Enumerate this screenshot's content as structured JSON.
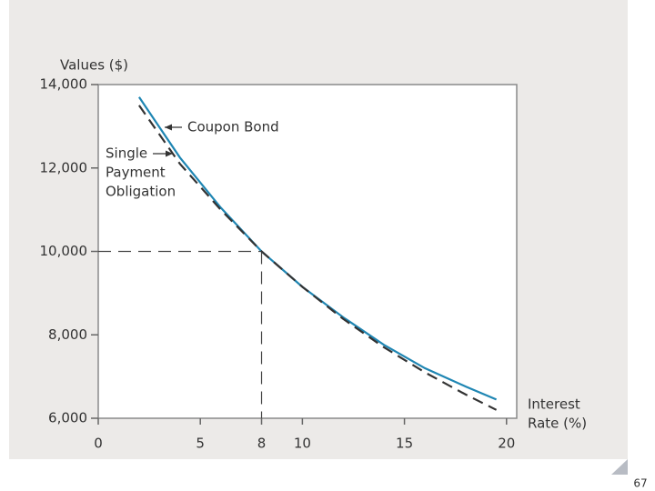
{
  "chart_data": {
    "type": "line",
    "y_label": "Values ($)",
    "x_label": [
      "Interest",
      "Rate (%)"
    ],
    "x": [
      2,
      4,
      6,
      8,
      10,
      12,
      14,
      16,
      18,
      19.5
    ],
    "series": [
      {
        "name": "Coupon Bond",
        "color": "#1f86b3",
        "dash": false,
        "values": [
          13700,
          12250,
          11050,
          10000,
          9150,
          8420,
          7760,
          7200,
          6760,
          6450
        ]
      },
      {
        "name": "Single Payment Obligation",
        "color": "#333333",
        "dash": true,
        "values": [
          13500,
          12100,
          11000,
          10000,
          9150,
          8380,
          7700,
          7100,
          6570,
          6200
        ]
      }
    ],
    "annotations": [
      {
        "lines": [
          "Coupon Bond"
        ],
        "series": 0
      },
      {
        "lines": [
          "Single",
          "Payment",
          "Obligation"
        ],
        "series": 1
      }
    ],
    "reference": {
      "x": 8,
      "y": 10000
    },
    "xlim": [
      0,
      20.5
    ],
    "ylim": [
      6000,
      14000
    ],
    "xticks": [
      0,
      5,
      8,
      10,
      15,
      20
    ],
    "yticks": [
      {
        "value": 6000,
        "label": "6,000"
      },
      {
        "value": 8000,
        "label": "8,000"
      },
      {
        "value": 10000,
        "label": "10,000"
      },
      {
        "value": 12000,
        "label": "12,000"
      },
      {
        "value": 14000,
        "label": "14,000"
      }
    ]
  },
  "slide": {
    "page_number": "67"
  }
}
